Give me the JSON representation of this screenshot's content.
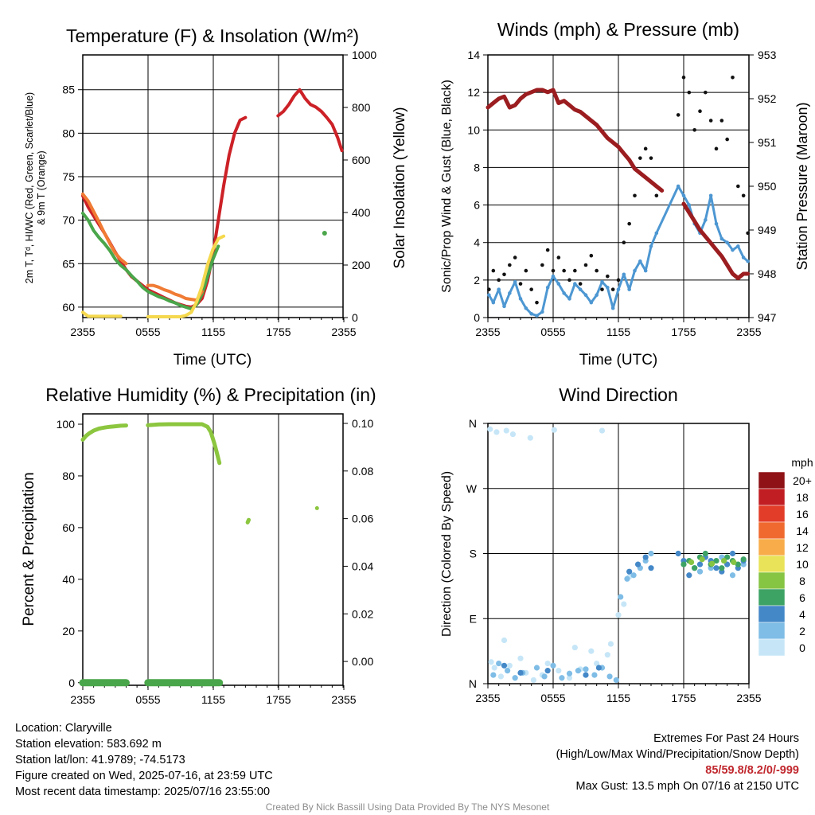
{
  "chart_data": [
    {
      "type": "line",
      "title": "Temperature (F) & Insolation (W/m²)",
      "xlabel": "Time (UTC)",
      "ylabel": "2m T, Tᵈ, HI/WC (Red, Green, Scarlet/Blue) & 9m T (Orange)",
      "y2label": "Solar Insolation (Yellow)",
      "x_ticks": [
        "2355",
        "0555",
        "1155",
        "1755",
        "2355"
      ],
      "ylim": [
        58.8,
        89
      ],
      "y_ticks": [
        60,
        65,
        70,
        75,
        80,
        85
      ],
      "y2lim": [
        0,
        1000
      ],
      "y2_ticks": [
        0,
        200,
        400,
        600,
        800,
        1000
      ],
      "grid": true,
      "x_range_hours": [
        0,
        24
      ],
      "series": [
        {
          "color": "#cc2127",
          "axis": "left",
          "x": [
            0.0,
            0.5,
            1.0,
            1.5,
            2.0,
            2.5,
            3.0,
            3.5,
            4.0,
            4.5,
            5.0,
            5.5,
            6.0,
            6.5,
            7.0,
            7.5,
            8.0,
            8.5,
            9.0,
            9.5,
            10.0,
            10.5,
            11.0,
            11.5,
            12.0,
            12.5,
            13.0,
            13.5,
            14.0,
            14.5,
            15.0,
            15.5,
            16.0,
            16.5,
            17.0,
            17.5,
            18.0,
            18.5,
            19.0,
            19.5,
            20.0,
            20.5,
            21.0,
            21.5,
            22.0,
            22.5,
            23.0,
            23.5,
            23.9
          ],
          "y": [
            72.8,
            71.5,
            70.5,
            69.5,
            68.5,
            67.4,
            66.3,
            65.3,
            64.3,
            63.5,
            63.0,
            62.5,
            62.0,
            61.7,
            61.4,
            61.1,
            60.8,
            60.5,
            60.3,
            60.1,
            60.0,
            60.3,
            61.0,
            63.0,
            66.0,
            70.0,
            74.0,
            77.5,
            80.0,
            81.5,
            81.8,
            null,
            null,
            null,
            null,
            null,
            82.0,
            82.5,
            83.3,
            84.3,
            85.0,
            84.0,
            83.3,
            83.0,
            82.5,
            81.8,
            81.0,
            79.5,
            78.0
          ]
        },
        {
          "color": "#4aa64a",
          "axis": "left",
          "x": [
            0.0,
            0.5,
            1.0,
            1.5,
            2.0,
            2.5,
            3.0,
            3.5,
            4.0,
            4.5,
            5.0,
            5.5,
            6.0,
            6.5,
            7.0,
            7.5,
            8.0,
            8.5,
            9.0,
            9.5,
            10.0,
            10.5,
            11.0,
            11.5,
            12.0,
            12.5,
            13.0
          ],
          "y": [
            70.8,
            70.0,
            68.8,
            68.0,
            67.3,
            66.5,
            65.5,
            64.8,
            64.3,
            63.6,
            63.0,
            62.3,
            61.8,
            61.5,
            61.2,
            61.0,
            60.7,
            60.5,
            60.2,
            60.0,
            59.8,
            60.3,
            61.5,
            63.5,
            65.5,
            67.0,
            null
          ],
          "x2": [
            22.3
          ],
          "y2": [
            68.5
          ]
        },
        {
          "color": "#f07b34",
          "axis": "left",
          "x": [
            0.0,
            0.5,
            1.0,
            1.5,
            2.0,
            2.5,
            3.0,
            3.5,
            4.0,
            4.5,
            5.0,
            5.5,
            6.0,
            6.5,
            7.0,
            7.5,
            8.0,
            8.5,
            9.0,
            9.5,
            10.0,
            10.5,
            11.0
          ],
          "y": [
            73.0,
            72.2,
            71.0,
            69.8,
            68.5,
            67.3,
            66.2,
            65.5,
            65.0,
            null,
            null,
            null,
            62.5,
            62.5,
            62.3,
            62.0,
            61.8,
            61.5,
            61.3,
            61.0,
            60.9,
            60.8,
            61.8
          ]
        },
        {
          "color": "#f5d84d",
          "axis": "right",
          "x": [
            0.0,
            0.5,
            1.0,
            1.5,
            2.0,
            2.5,
            3.0,
            3.5,
            null,
            6.0,
            7.0,
            8.0,
            9.0,
            9.5,
            10.0,
            10.5,
            11.0,
            11.5,
            12.0,
            12.5,
            13.0
          ],
          "y": [
            20,
            5,
            5,
            5,
            5,
            5,
            5,
            5,
            null,
            3,
            3,
            3,
            3,
            8,
            20,
            60,
            120,
            200,
            260,
            300,
            310
          ]
        }
      ]
    },
    {
      "type": "scatter",
      "title": "Winds (mph) & Pressure (mb)",
      "xlabel": "Time (UTC)",
      "ylabel": "Sonic/Prop Wind & Gust (Blue, Black)",
      "y2label": "Station Pressure (Maroon)",
      "x_ticks": [
        "2355",
        "0555",
        "1155",
        "1755",
        "2355"
      ],
      "ylim": [
        0,
        14
      ],
      "y_ticks": [
        0,
        2,
        4,
        6,
        8,
        10,
        12,
        14
      ],
      "y2lim": [
        947,
        953
      ],
      "y2_ticks": [
        947,
        948,
        949,
        950,
        951,
        952,
        953
      ],
      "grid": true,
      "series": [
        {
          "color": "#4d97d2",
          "axis": "left",
          "x": [
            0.1,
            0.5,
            1.0,
            1.5,
            2.0,
            2.5,
            3.0,
            3.5,
            4.0,
            4.5,
            5.0,
            5.5,
            6.0,
            6.5,
            7.0,
            7.5,
            8.0,
            8.5,
            9.0,
            9.5,
            10.0,
            10.5,
            11.0,
            11.5,
            12.0,
            12.5,
            13.0,
            13.5,
            14.0,
            14.5,
            15.0,
            15.5,
            17.5,
            18.0,
            18.5,
            19.0,
            19.5,
            20.0,
            20.5,
            21.0,
            21.5,
            22.0,
            22.5,
            23.0,
            23.5,
            23.9
          ],
          "y": [
            1.2,
            0.8,
            1.5,
            0.6,
            1.3,
            1.9,
            1.0,
            0.5,
            0.2,
            0.1,
            0.3,
            1.6,
            2.2,
            1.8,
            1.3,
            1.0,
            1.8,
            1.5,
            1.2,
            0.8,
            1.2,
            1.9,
            1.6,
            0.5,
            1.5,
            2.3,
            1.5,
            2.5,
            3.0,
            2.5,
            3.8,
            4.5,
            7.0,
            6.5,
            6.0,
            5.0,
            4.5,
            5.2,
            6.5,
            5.0,
            4.2,
            4.0,
            3.6,
            3.8,
            3.2,
            3.0
          ]
        },
        {
          "color": "#111111",
          "axis": "left",
          "x": [
            0.1,
            0.5,
            1.0,
            1.5,
            2.0,
            2.5,
            3.0,
            3.5,
            4.0,
            4.5,
            5.0,
            5.5,
            6.0,
            6.5,
            7.0,
            7.5,
            8.0,
            8.5,
            9.0,
            9.5,
            10.0,
            10.5,
            11.0,
            11.5,
            12.0,
            12.5,
            13.0,
            13.5,
            14.0,
            14.5,
            15.0,
            15.5,
            17.5,
            18.0,
            18.5,
            19.0,
            19.5,
            20.0,
            20.5,
            21.0,
            21.5,
            22.0,
            22.5,
            23.0,
            23.5,
            23.9
          ],
          "y": [
            1.5,
            2.5,
            2.0,
            2.3,
            2.8,
            3.2,
            1.8,
            2.5,
            1.5,
            0.8,
            2.8,
            3.6,
            2.5,
            3.2,
            2.5,
            2.0,
            2.5,
            1.8,
            2.8,
            3.3,
            2.5,
            1.5,
            2.2,
            1.5,
            2.0,
            4.0,
            5.0,
            6.5,
            8.5,
            9.0,
            8.5,
            6.5,
            10.8,
            12.8,
            12.0,
            10.0,
            11.0,
            12.0,
            10.5,
            9.0,
            10.5,
            9.5,
            12.8,
            7.0,
            6.5,
            4.5
          ]
        },
        {
          "color": "#9b1d20",
          "axis": "right",
          "x": [
            0.0,
            0.5,
            1.0,
            1.5,
            2.0,
            2.5,
            3.0,
            3.5,
            4.0,
            4.5,
            5.0,
            5.5,
            6.0,
            6.5,
            7.0,
            7.5,
            8.0,
            8.5,
            9.0,
            9.5,
            10.0,
            10.5,
            11.0,
            11.5,
            12.0,
            12.5,
            13.0,
            13.5,
            14.0,
            14.5,
            15.0,
            15.5,
            16.0,
            null,
            18.0,
            18.5,
            19.0,
            19.5,
            20.0,
            20.5,
            21.0,
            21.5,
            22.0,
            22.5,
            23.0,
            23.5,
            23.9
          ],
          "y": [
            951.8,
            951.9,
            952.0,
            952.05,
            951.8,
            951.85,
            952.0,
            952.1,
            952.15,
            952.2,
            952.2,
            952.15,
            952.2,
            951.9,
            951.95,
            951.85,
            951.75,
            951.7,
            951.6,
            951.5,
            951.4,
            951.25,
            951.1,
            951.0,
            950.9,
            950.75,
            950.6,
            950.4,
            950.3,
            950.2,
            950.1,
            950.0,
            949.9,
            null,
            949.6,
            949.4,
            949.2,
            949.0,
            948.85,
            948.7,
            948.55,
            948.4,
            948.2,
            948.0,
            947.9,
            948.0,
            948.0
          ]
        }
      ]
    },
    {
      "type": "line",
      "title": "Relative Humidity (%) & Precipitation (in)",
      "xlabel": "",
      "ylabel": "Percent & Precipitation",
      "x_ticks": [
        "2355",
        "0555",
        "1155",
        "1755",
        "2355"
      ],
      "ylim": [
        -1,
        104
      ],
      "y_ticks": [
        0,
        20,
        40,
        60,
        80,
        100
      ],
      "y2lim": [
        -0.01,
        0.104
      ],
      "y2_ticks": [
        "0.00",
        "0.02",
        "0.04",
        "0.06",
        "0.08",
        "0.10"
      ],
      "grid": false,
      "series": [
        {
          "color": "#8cc63f",
          "axis": "left",
          "x": [
            0.0,
            0.3,
            0.6,
            1.0,
            1.5,
            2.0,
            2.5,
            3.0,
            3.5,
            4.0,
            null,
            6.0,
            7.0,
            8.0,
            9.0,
            10.0,
            11.0,
            11.5,
            11.8,
            12.1,
            12.3,
            12.6,
            null,
            15.2,
            15.3,
            null,
            21.6
          ],
          "y": [
            94,
            95.5,
            96.5,
            97.5,
            98.3,
            98.7,
            99.0,
            99.2,
            99.4,
            99.5,
            null,
            99.6,
            99.9,
            100,
            100,
            100,
            100,
            99,
            97,
            93,
            90,
            85,
            null,
            62,
            63,
            null,
            67.5
          ]
        },
        {
          "color": "#4aa64a",
          "axis": "left",
          "x": [
            0.0,
            1.0,
            2.0,
            3.0,
            4.0,
            null,
            6.0,
            7.0,
            8.0,
            9.0,
            10.0,
            11.0,
            12.0,
            12.6
          ],
          "y": [
            0,
            0,
            0,
            0,
            0,
            null,
            0,
            0,
            0,
            0,
            0,
            0,
            0,
            0
          ]
        }
      ]
    },
    {
      "type": "scatter",
      "title": "Wind Direction",
      "xlabel": "",
      "ylabel": "Direction (Colored By Speed)",
      "x_ticks": [
        "2355",
        "0555",
        "1155",
        "1755",
        "2355"
      ],
      "y_ticks": [
        "N",
        "E",
        "S",
        "W",
        "N"
      ],
      "ylim": [
        0,
        360
      ],
      "legend": {
        "title": "mph",
        "labels": [
          "0",
          "2",
          "4",
          "6",
          "8",
          "10",
          "12",
          "14",
          "16",
          "18",
          "20+"
        ],
        "colors": [
          "#c6e6f7",
          "#7fbde6",
          "#4488c8",
          "#3da365",
          "#86c443",
          "#e8e358",
          "#f8ad4a",
          "#f06a2f",
          "#e23d28",
          "#c11e23",
          "#8e1216"
        ],
        "placement": "right"
      },
      "series": [
        {
          "name": "0-2 mph",
          "color": "#c6e6f7",
          "x": [
            0.3,
            0.6,
            1.2,
            2.0,
            2.5,
            3.5,
            4.2,
            5.0,
            6.5,
            7.5,
            8.5,
            10.0,
            11.0,
            11.3,
            12.0,
            12.5,
            13.0,
            0.2,
            0.8,
            1.7,
            2.3,
            3.9,
            6.1,
            10.5,
            1.5,
            3.0,
            5.5,
            8.0,
            9.5
          ],
          "y": [
            30,
            22,
            10,
            25,
            8,
            15,
            5,
            12,
            18,
            8,
            20,
            28,
            40,
            55,
            95,
            110,
            148,
            352,
            348,
            350,
            345,
            340,
            351,
            350,
            60,
            35,
            28,
            50,
            45
          ]
        },
        {
          "name": "2-4 mph",
          "color": "#7fbde6",
          "x": [
            0.5,
            1.0,
            1.8,
            2.5,
            3.2,
            4.5,
            5.2,
            6.0,
            6.8,
            7.5,
            8.3,
            9.0,
            9.8,
            10.5,
            11.2,
            11.8,
            12.2,
            12.8,
            13.4,
            14.0,
            14.5,
            15.0,
            19.5,
            20.5,
            21.5,
            22.5,
            23.5
          ],
          "y": [
            12,
            28,
            18,
            8,
            15,
            22,
            10,
            25,
            8,
            14,
            18,
            20,
            12,
            22,
            10,
            5,
            120,
            145,
            150,
            160,
            170,
            180,
            155,
            160,
            175,
            150,
            165
          ]
        },
        {
          "name": "4-6 mph",
          "color": "#4488c8",
          "x": [
            1.5,
            3.0,
            5.5,
            9.0,
            10.2,
            13.0,
            13.8,
            14.5,
            15.0,
            17.5,
            18.0,
            18.5,
            19.0,
            19.5,
            20.0,
            20.5,
            21.0,
            21.5,
            22.0,
            22.5,
            23.0,
            23.5
          ],
          "y": [
            25,
            15,
            18,
            12,
            22,
            155,
            165,
            175,
            160,
            180,
            170,
            150,
            160,
            165,
            175,
            170,
            160,
            155,
            165,
            180,
            160,
            170
          ]
        },
        {
          "name": "6-8 mph",
          "color": "#3da365",
          "x": [
            18.0,
            18.5,
            19.0,
            19.5,
            20.0,
            20.5,
            21.0,
            21.5,
            22.0,
            22.5,
            23.0,
            23.5
          ],
          "y": [
            165,
            170,
            160,
            175,
            180,
            165,
            170,
            160,
            175,
            170,
            165,
            172
          ]
        },
        {
          "name": "8-10 mph",
          "color": "#86c443",
          "x": [
            18.7,
            19.7,
            20.6,
            21.7,
            22.6
          ],
          "y": [
            168,
            172,
            166,
            170,
            168
          ]
        }
      ]
    }
  ],
  "info": {
    "location": "Location: Claryville",
    "elevation": "Station elevation: 583.692 m",
    "latlon": "Station lat/lon: 41.9789; -74.5173",
    "created": "Figure created on Wed, 2025-07-16, at 23:59 UTC",
    "recent": "Most recent data timestamp: 2025/07/16 23:55:00"
  },
  "extremes": {
    "title": "Extremes For Past 24 Hours",
    "subtitle": "(High/Low/Max Wind/Precipitation/Snow Depth)",
    "values": "85/59.8/8.2/0/-999",
    "max_gust": "Max Gust: 13.5 mph On 07/16 at 2150 UTC"
  },
  "credit": "Created By Nick Bassill Using Data Provided By The NYS Mesonet"
}
